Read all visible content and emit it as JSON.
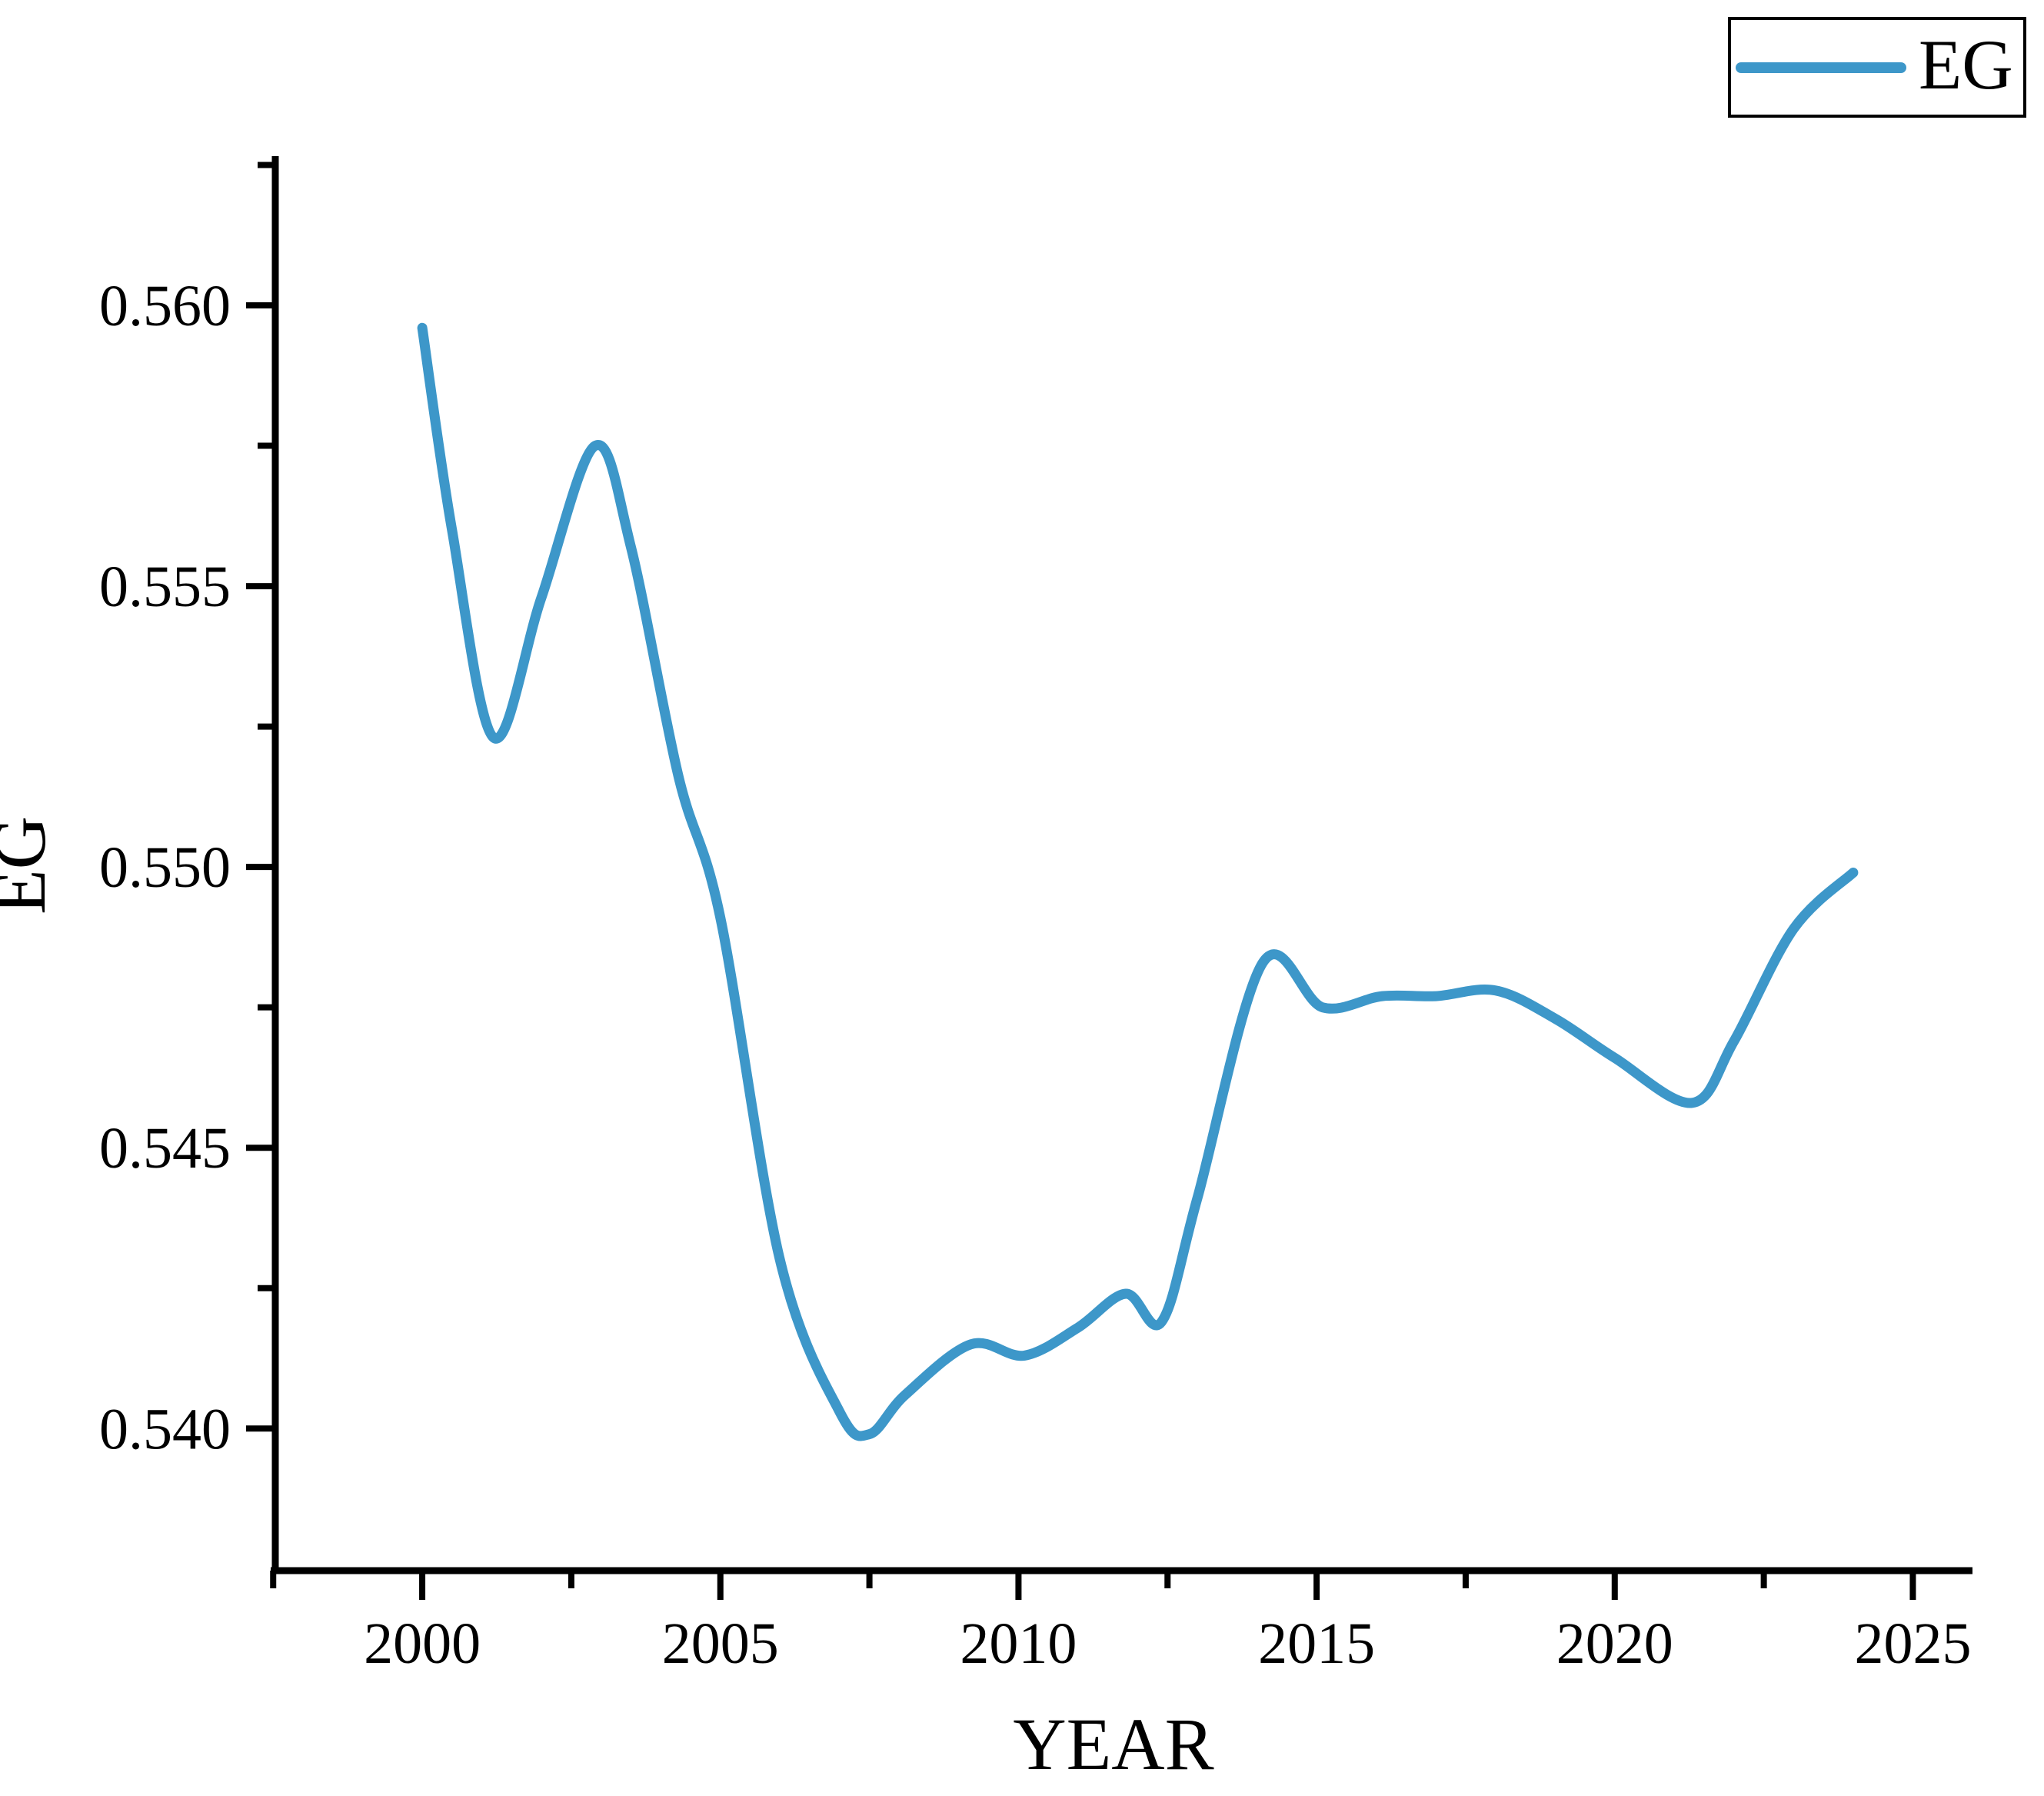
{
  "chart_data": {
    "type": "line",
    "title": "",
    "xlabel": "YEAR",
    "ylabel": "EG",
    "legend_label": "EG",
    "legend_position": "top-right",
    "grid": false,
    "line_color": "#3d97c9",
    "axis_color": "#000000",
    "xlim": [
      1997.51,
      2026.0
    ],
    "ylim": [
      0.53747,
      0.56263
    ],
    "x_tick_labels": [
      "2000",
      "2005",
      "2010",
      "2015",
      "2020",
      "2025"
    ],
    "x_ticks_major": [
      2000,
      2005,
      2010,
      2015,
      2020,
      2025
    ],
    "x_ticks_minor": [
      1997.5,
      2002.5,
      2007.5,
      2012.5,
      2017.5,
      2022.5
    ],
    "y_tick_labels": [
      "0.540",
      "0.545",
      "0.550",
      "0.555",
      "0.560"
    ],
    "y_ticks_major": [
      0.54,
      0.545,
      0.55,
      0.555,
      0.56
    ],
    "y_ticks_minor": [
      0.5425,
      0.5475,
      0.5525,
      0.5575,
      0.5625
    ],
    "series": [
      {
        "name": "EG",
        "x": [
          2000,
          2001,
          2002,
          2003,
          2004,
          2005,
          2006,
          2007,
          2008,
          2009,
          2010,
          2011,
          2012,
          2013,
          2014,
          2015,
          2016,
          2017,
          2018,
          2019,
          2020,
          2021,
          2022,
          2023,
          2024
        ],
        "values": [
          0.5596,
          0.5525,
          0.5548,
          0.5574,
          0.5527,
          0.5491,
          0.543,
          0.5403,
          0.5406,
          0.5415,
          0.5413,
          0.5418,
          0.5422,
          0.5441,
          0.5482,
          0.5475,
          0.5477,
          0.5477,
          0.5478,
          0.5473,
          0.5466,
          0.546,
          0.5469,
          0.5489,
          0.5499
        ]
      }
    ],
    "smooth_render_points": {
      "x": [
        2000.0,
        2000.5,
        2001.2,
        2002.0,
        2002.9,
        2003.5,
        2004.3,
        2005.0,
        2006.0,
        2007.0,
        2007.5,
        2008.1,
        2009.2,
        2010.1,
        2011.0,
        2011.8,
        2012.4,
        2013.0,
        2014.1,
        2015.1,
        2016.1,
        2017.0,
        2018.0,
        2019.0,
        2020.0,
        2021.3,
        2022.0,
        2023.0,
        2024.0
      ],
      "y": [
        0.5596,
        0.556,
        0.5523,
        0.5548,
        0.5575,
        0.5557,
        0.5516,
        0.5491,
        0.543,
        0.5403,
        0.5399,
        0.5406,
        0.5415,
        0.5413,
        0.5418,
        0.5424,
        0.5419,
        0.5441,
        0.5483,
        0.5475,
        0.5477,
        0.5477,
        0.5478,
        0.5473,
        0.5466,
        0.5458,
        0.5469,
        0.5489,
        0.5499
      ]
    }
  }
}
